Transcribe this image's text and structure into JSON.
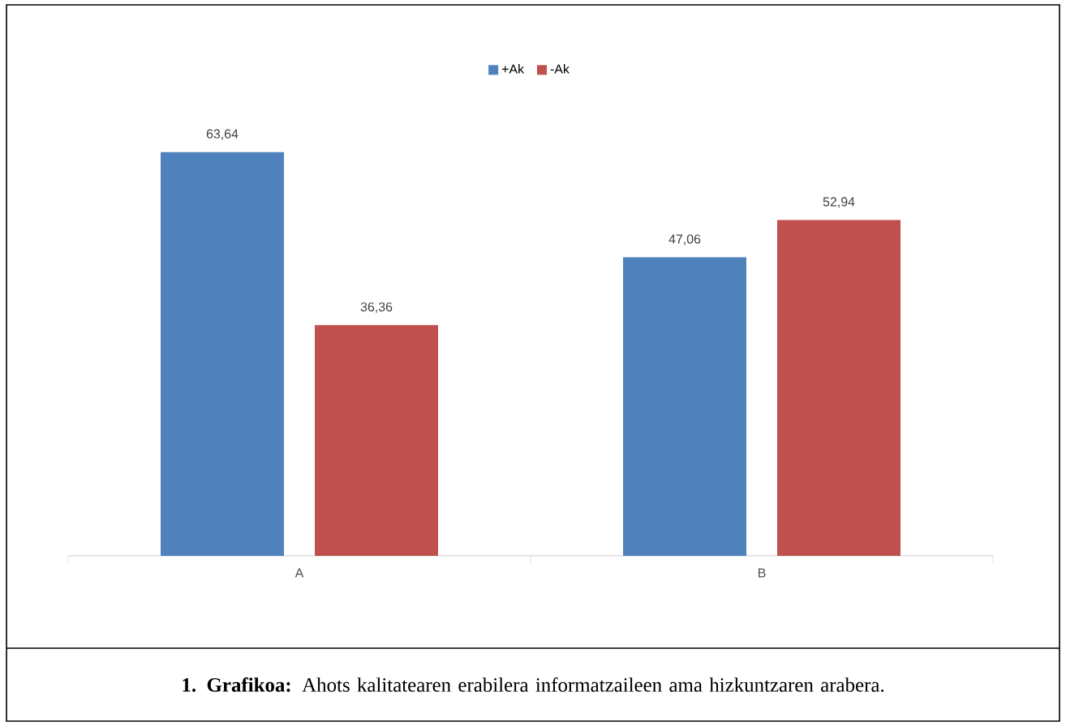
{
  "chart_data": {
    "type": "bar",
    "categories": [
      "A",
      "B"
    ],
    "series": [
      {
        "name": "+Ak",
        "color": "#4f81bd",
        "values": [
          63.64,
          47.06
        ],
        "value_labels": [
          "63,64",
          "47,06"
        ]
      },
      {
        "name": "-Ak",
        "color": "#c0504d",
        "values": [
          36.36,
          52.94
        ],
        "value_labels": [
          "36,36",
          "52,94"
        ]
      }
    ],
    "tick_labels": "x",
    "legend": "top",
    "grid": false,
    "annotations": [
      "**1. Grafikoa:** Ahots kalitatearen erabilera informatzaileen ama hizkuntzaren arabera."
    ]
  }
}
